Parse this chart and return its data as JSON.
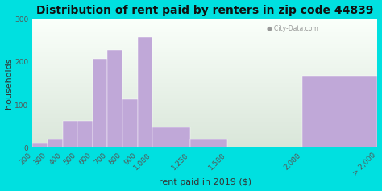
{
  "title": "Distribution of rent paid by renters in zip code 44839",
  "xlabel": "rent paid in 2019 ($)",
  "ylabel": "households",
  "bar_labels": [
    "200",
    "300",
    "400",
    "500",
    "600",
    "700",
    "800",
    "900",
    "1,000",
    "1,250",
    "1,500",
    "2,000",
    "> 2,000"
  ],
  "bar_values": [
    10,
    20,
    62,
    62,
    208,
    228,
    113,
    258,
    47,
    20,
    0,
    168
  ],
  "bar_edges": [
    200,
    300,
    400,
    500,
    600,
    700,
    800,
    900,
    1000,
    1250,
    1500,
    2000,
    2500
  ],
  "bar_color": "#c0a8d8",
  "outer_bg": "#00e0e0",
  "title_fontsize": 10,
  "label_fontsize": 8,
  "tick_fontsize": 6.5,
  "ylim": [
    0,
    300
  ],
  "yticks": [
    0,
    100,
    200,
    300
  ],
  "watermark": "City-Data.com"
}
